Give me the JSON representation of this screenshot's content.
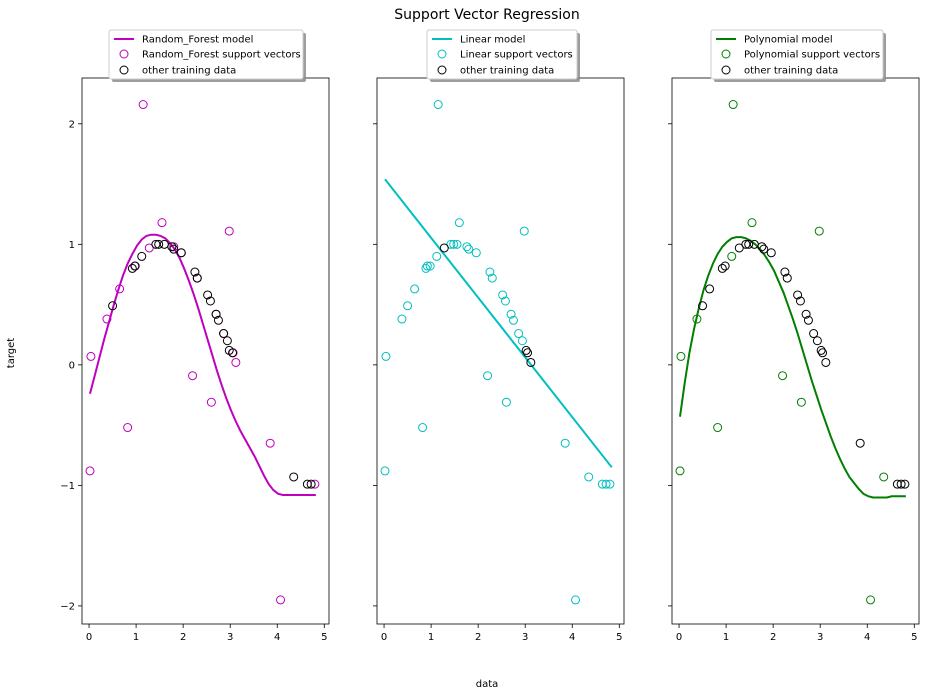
{
  "figure": {
    "title": "Support Vector Regression",
    "xlabel": "data",
    "ylabel": "target"
  },
  "chart_data": [
    {
      "type": "scatter",
      "model": "Random_Forest",
      "color": "#bf00bf",
      "xlim": [
        -0.15,
        5.1
      ],
      "ylim": [
        -2.15,
        2.38
      ],
      "xticks": [
        0,
        1,
        2,
        3,
        4,
        5
      ],
      "yticks": [
        -2,
        -1,
        0,
        1,
        2
      ],
      "show_y_ticklabels": true,
      "legend": [
        "Random_Forest model",
        "Random_Forest support vectors",
        "other training data"
      ],
      "model_line": {
        "x": [
          0.02,
          0.12,
          0.22,
          0.32,
          0.42,
          0.52,
          0.62,
          0.72,
          0.82,
          0.92,
          1.02,
          1.12,
          1.22,
          1.32,
          1.42,
          1.52,
          1.62,
          1.72,
          1.82,
          1.92,
          2.02,
          2.12,
          2.22,
          2.32,
          2.42,
          2.52,
          2.62,
          2.72,
          2.82,
          2.92,
          3.02,
          3.12,
          3.22,
          3.32,
          3.42,
          3.52,
          3.62,
          3.72,
          3.82,
          3.92,
          4.02,
          4.12,
          4.22,
          4.32,
          4.42,
          4.52,
          4.62,
          4.72,
          4.82
        ],
        "y": [
          -0.24,
          -0.09,
          0.06,
          0.21,
          0.35,
          0.49,
          0.62,
          0.74,
          0.84,
          0.92,
          0.99,
          1.04,
          1.07,
          1.08,
          1.08,
          1.07,
          1.05,
          1.01,
          0.96,
          0.89,
          0.8,
          0.7,
          0.59,
          0.47,
          0.34,
          0.21,
          0.08,
          -0.05,
          -0.17,
          -0.28,
          -0.38,
          -0.47,
          -0.55,
          -0.62,
          -0.69,
          -0.76,
          -0.84,
          -0.92,
          -0.99,
          -1.04,
          -1.07,
          -1.08,
          -1.08,
          -1.08,
          -1.08,
          -1.08,
          -1.08,
          -1.08,
          -1.08
        ]
      },
      "support_vectors": {
        "x": [
          0.02,
          0.04,
          0.38,
          0.65,
          0.82,
          0.97,
          1.15,
          1.28,
          1.55,
          1.8,
          1.96,
          2.2,
          2.3,
          2.6,
          2.7,
          2.86,
          2.98,
          3.06,
          3.12,
          3.85,
          4.07,
          4.8
        ],
        "y": [
          -0.88,
          0.07,
          0.38,
          0.63,
          -0.52,
          0.82,
          2.16,
          0.97,
          1.18,
          0.98,
          0.93,
          -0.09,
          0.72,
          -0.31,
          0.42,
          0.26,
          1.11,
          0.1,
          0.02,
          -0.65,
          -1.95,
          -0.99
        ]
      },
      "other_data": {
        "x": [
          0.5,
          0.92,
          0.98,
          1.12,
          1.42,
          1.48,
          1.6,
          1.76,
          1.8,
          1.96,
          2.25,
          2.3,
          2.52,
          2.58,
          2.7,
          2.75,
          2.86,
          2.94,
          2.98,
          3.05,
          4.35,
          4.64,
          4.72
        ],
        "y": [
          0.49,
          0.8,
          0.82,
          0.9,
          1.0,
          1.0,
          1.0,
          0.98,
          0.96,
          0.93,
          0.77,
          0.72,
          0.58,
          0.53,
          0.42,
          0.37,
          0.26,
          0.2,
          0.12,
          0.1,
          -0.93,
          -0.99,
          -0.99
        ]
      }
    },
    {
      "type": "scatter",
      "model": "Linear",
      "color": "#00bfbf",
      "xlim": [
        -0.15,
        5.1
      ],
      "ylim": [
        -2.15,
        2.38
      ],
      "xticks": [
        0,
        1,
        2,
        3,
        4,
        5
      ],
      "yticks": [
        -2,
        -1,
        0,
        1,
        2
      ],
      "show_y_ticklabels": false,
      "legend": [
        "Linear model",
        "Linear support vectors",
        "other training data"
      ],
      "model_line": {
        "x": [
          0.02,
          4.84
        ],
        "y": [
          1.54,
          -0.85
        ]
      },
      "support_vectors": {
        "x": [
          0.02,
          0.04,
          0.38,
          0.5,
          0.65,
          0.82,
          0.89,
          0.92,
          0.98,
          1.12,
          1.15,
          1.42,
          1.48,
          1.55,
          1.6,
          1.76,
          1.8,
          1.96,
          2.2,
          2.25,
          2.3,
          2.52,
          2.58,
          2.6,
          2.7,
          2.75,
          2.86,
          2.94,
          2.98,
          4.07,
          4.35,
          4.64,
          4.72,
          4.8,
          3.85
        ],
        "y": [
          -0.88,
          0.07,
          0.38,
          0.49,
          0.63,
          -0.52,
          0.8,
          0.82,
          0.82,
          0.9,
          2.16,
          1.0,
          1.0,
          1.0,
          1.18,
          0.98,
          0.96,
          0.93,
          -0.09,
          0.77,
          0.72,
          0.58,
          0.53,
          -0.31,
          0.42,
          0.37,
          0.26,
          0.2,
          1.11,
          -1.95,
          -0.93,
          -0.99,
          -0.99,
          -0.99,
          -0.65
        ]
      },
      "other_data": {
        "x": [
          1.28,
          3.02,
          3.05,
          3.12
        ],
        "y": [
          0.97,
          0.12,
          0.1,
          0.02
        ]
      }
    },
    {
      "type": "scatter",
      "model": "Polynomial",
      "color": "#007f00",
      "xlim": [
        -0.15,
        5.1
      ],
      "ylim": [
        -2.15,
        2.38
      ],
      "xticks": [
        0,
        1,
        2,
        3,
        4,
        5
      ],
      "yticks": [
        -2,
        -1,
        0,
        1,
        2
      ],
      "show_y_ticklabels": false,
      "legend": [
        "Polynomial model",
        "Polynomial support vectors",
        "other training data"
      ],
      "model_line": {
        "x": [
          0.02,
          0.12,
          0.22,
          0.32,
          0.42,
          0.52,
          0.62,
          0.72,
          0.82,
          0.92,
          1.02,
          1.12,
          1.22,
          1.32,
          1.42,
          1.52,
          1.62,
          1.72,
          1.82,
          1.92,
          2.02,
          2.12,
          2.22,
          2.32,
          2.42,
          2.52,
          2.62,
          2.72,
          2.82,
          2.92,
          3.02,
          3.12,
          3.22,
          3.32,
          3.42,
          3.52,
          3.62,
          3.72,
          3.82,
          3.92,
          4.02,
          4.12,
          4.22,
          4.32,
          4.42,
          4.52,
          4.62,
          4.72,
          4.82
        ],
        "y": [
          -0.43,
          -0.15,
          0.1,
          0.3,
          0.47,
          0.62,
          0.74,
          0.84,
          0.92,
          0.98,
          1.02,
          1.05,
          1.06,
          1.06,
          1.05,
          1.03,
          1.0,
          0.96,
          0.91,
          0.85,
          0.78,
          0.69,
          0.6,
          0.49,
          0.38,
          0.26,
          0.13,
          0.0,
          -0.13,
          -0.25,
          -0.37,
          -0.48,
          -0.59,
          -0.69,
          -0.78,
          -0.86,
          -0.93,
          -0.98,
          -1.03,
          -1.07,
          -1.09,
          -1.1,
          -1.1,
          -1.1,
          -1.1,
          -1.09,
          -1.09,
          -1.09,
          -1.09
        ]
      },
      "support_vectors": {
        "x": [
          0.02,
          0.04,
          0.38,
          0.82,
          1.12,
          1.15,
          1.55,
          2.2,
          2.6,
          2.98,
          4.07,
          4.35
        ],
        "y": [
          -0.88,
          0.07,
          0.38,
          -0.52,
          0.9,
          2.16,
          1.18,
          -0.09,
          -0.31,
          1.11,
          -1.95,
          -0.93
        ]
      },
      "other_data": {
        "x": [
          0.5,
          0.65,
          0.92,
          0.98,
          1.28,
          1.42,
          1.48,
          1.6,
          1.76,
          1.8,
          1.96,
          2.25,
          2.3,
          2.52,
          2.58,
          2.7,
          2.75,
          2.86,
          2.94,
          3.02,
          3.05,
          3.12,
          3.85,
          4.64,
          4.72,
          4.8
        ],
        "y": [
          0.49,
          0.63,
          0.8,
          0.82,
          0.97,
          1.0,
          1.0,
          1.0,
          0.98,
          0.96,
          0.93,
          0.77,
          0.72,
          0.58,
          0.53,
          0.42,
          0.37,
          0.26,
          0.2,
          0.12,
          0.1,
          0.02,
          -0.65,
          -0.99,
          -0.99,
          -0.99
        ]
      }
    }
  ]
}
